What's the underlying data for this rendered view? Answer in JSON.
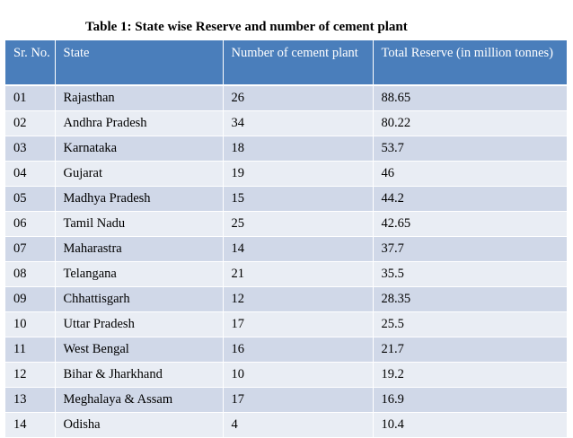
{
  "caption": "Table 1: State wise Reserve and number of cement plant",
  "table": {
    "headers": {
      "sr": "Sr. No.",
      "state": "State",
      "plants": "Number of cement plant",
      "reserve": "Total Reserve (in million tonnes)"
    },
    "rows": [
      {
        "sr": "01",
        "state": "Rajasthan",
        "plants": "26",
        "reserve": "88.65"
      },
      {
        "sr": "02",
        "state": "Andhra Pradesh",
        "plants": "34",
        "reserve": "80.22"
      },
      {
        "sr": "03",
        "state": "Karnataka",
        "plants": "18",
        "reserve": "53.7"
      },
      {
        "sr": "04",
        "state": "Gujarat",
        "plants": "19",
        "reserve": "46"
      },
      {
        "sr": "05",
        "state": "Madhya Pradesh",
        "plants": "15",
        "reserve": "44.2"
      },
      {
        "sr": "06",
        "state": "Tamil Nadu",
        "plants": "25",
        "reserve": "42.65"
      },
      {
        "sr": "07",
        "state": "Maharastra",
        "plants": "14",
        "reserve": "37.7"
      },
      {
        "sr": "08",
        "state": "Telangana",
        "plants": "21",
        "reserve": "35.5"
      },
      {
        "sr": "09",
        "state": "Chhattisgarh",
        "plants": "12",
        "reserve": "28.35"
      },
      {
        "sr": "10",
        "state": "Uttar Pradesh",
        "plants": "17",
        "reserve": "25.5"
      },
      {
        "sr": "11",
        "state": "West Bengal",
        "plants": "16",
        "reserve": "21.7"
      },
      {
        "sr": "12",
        "state": "Bihar & Jharkhand",
        "plants": "10",
        "reserve": "19.2"
      },
      {
        "sr": "13",
        "state": "Meghalaya & Assam",
        "plants": "17",
        "reserve": "16.9"
      },
      {
        "sr": "14",
        "state": "Odisha",
        "plants": "4",
        "reserve": "10.4"
      }
    ]
  },
  "colors": {
    "header_bg": "#4a7ebb",
    "row_odd_bg": "#d0d8e8",
    "row_even_bg": "#e9edf4"
  }
}
